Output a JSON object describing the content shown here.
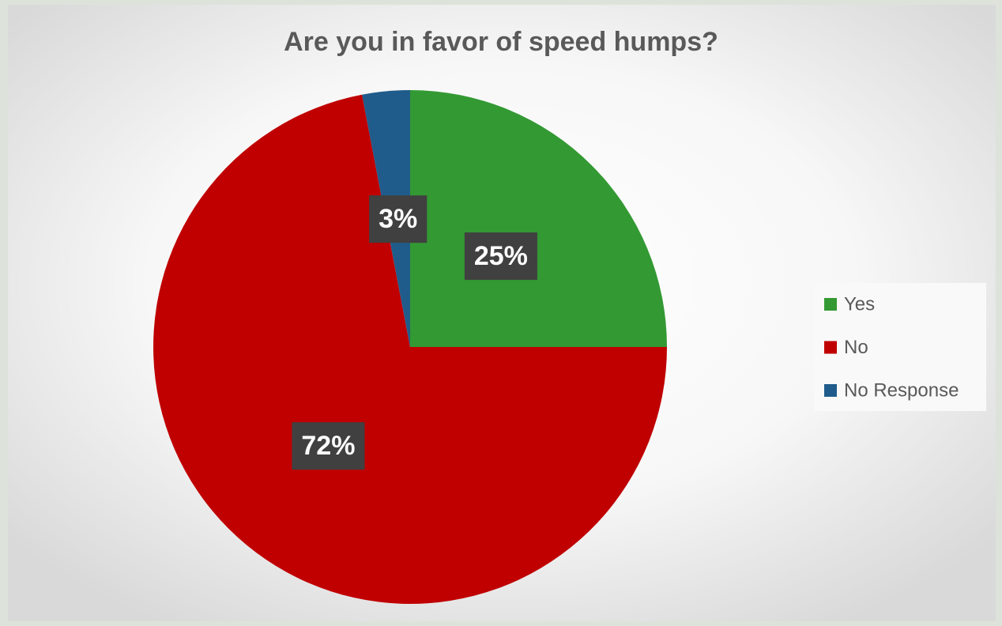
{
  "chart_data": {
    "type": "pie",
    "title": "Are you in favor of speed humps?",
    "categories": [
      "Yes",
      "No",
      "No Response"
    ],
    "values": [
      25,
      72,
      3
    ],
    "value_labels": [
      "25%",
      "72%",
      "3%"
    ],
    "colors": [
      "#339933",
      "#c00000",
      "#1f5c8b"
    ],
    "legend": "right"
  }
}
